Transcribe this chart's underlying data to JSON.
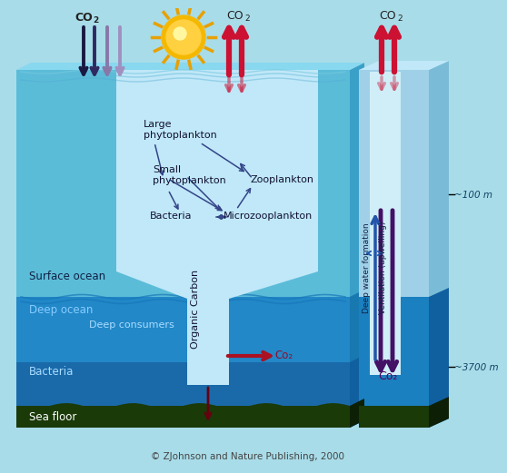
{
  "bg_color": "#a8dce8",
  "ocean_top_color": "#5bbcd8",
  "ocean_deep_color": "#2288c8",
  "ocean_deeper_color": "#1a6aaa",
  "seafloor_color": "#1a3a08",
  "tube_color": "#c0e8f8",
  "col_color": "#9fd0e8",
  "col_inner_color": "#d0eef8",
  "copyright": "© ZJohnson and Nature Publishing, 2000",
  "depth_100m": "~100 m",
  "depth_3700m": "~3700 m",
  "label_large_phyto": "Large\nphytoplankton",
  "label_small_phyto": "Small\nphytoplankton",
  "label_bacteria_up": "Bacteria",
  "label_zooplankton": "Zooplankton",
  "label_micro": "Microzooplankton",
  "label_organic": "Organic Carbon",
  "label_surface": "Surface ocean",
  "label_deep": "Deep ocean",
  "label_consumers": "Deep consumers",
  "label_bacteria_dn": "Bacteria",
  "label_seafloor": "Sea floor",
  "label_co2_deep": "Co₂",
  "label_co2_col": "Co₂",
  "label_deepwater": "Deep water formation",
  "label_ventilation": "Ventilation (upwelling)"
}
